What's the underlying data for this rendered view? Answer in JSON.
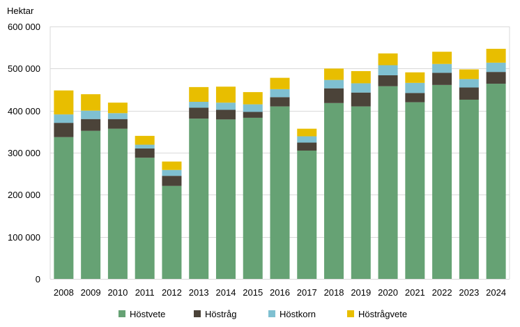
{
  "chart_data": {
    "type": "bar",
    "stacked": true,
    "title": "",
    "xlabel": "",
    "ylabel": "Hektar",
    "ylim": [
      0,
      600000
    ],
    "yticks": [
      {
        "value": 0,
        "label": "0"
      },
      {
        "value": 100000,
        "label": "100 000"
      },
      {
        "value": 200000,
        "label": "200 000"
      },
      {
        "value": 300000,
        "label": "300 000"
      },
      {
        "value": 400000,
        "label": "400 000"
      },
      {
        "value": 500000,
        "label": "500 000"
      },
      {
        "value": 600000,
        "label": "600 000"
      }
    ],
    "grid": true,
    "legend_position": "bottom",
    "categories": [
      "2008",
      "2009",
      "2010",
      "2011",
      "2012",
      "2013",
      "2014",
      "2015",
      "2016",
      "2017",
      "2018",
      "2019",
      "2020",
      "2021",
      "2022",
      "2023",
      "2024"
    ],
    "series": [
      {
        "name": "Höstvete",
        "color": "#66a274",
        "values": [
          337000,
          352000,
          357000,
          288000,
          221000,
          381000,
          379000,
          383000,
          410000,
          305000,
          418000,
          410000,
          458000,
          420000,
          461000,
          426000,
          464000
        ]
      },
      {
        "name": "Höstråg",
        "color": "#4b4339",
        "values": [
          34000,
          28000,
          23000,
          22000,
          24000,
          26000,
          23000,
          14000,
          22000,
          19000,
          35000,
          33000,
          26000,
          22000,
          29000,
          29000,
          28000
        ]
      },
      {
        "name": "Höstkorn",
        "color": "#7fc0d1",
        "values": [
          20000,
          20000,
          14000,
          9000,
          14000,
          14000,
          17000,
          18000,
          19000,
          15000,
          20000,
          22000,
          24000,
          24000,
          21000,
          20000,
          22000
        ]
      },
      {
        "name": "Höstrågvete",
        "color": "#e8be00",
        "values": [
          57000,
          39000,
          25000,
          21000,
          20000,
          35000,
          38000,
          29000,
          27000,
          18000,
          27000,
          29000,
          28000,
          25000,
          29000,
          23000,
          33000
        ]
      }
    ]
  }
}
